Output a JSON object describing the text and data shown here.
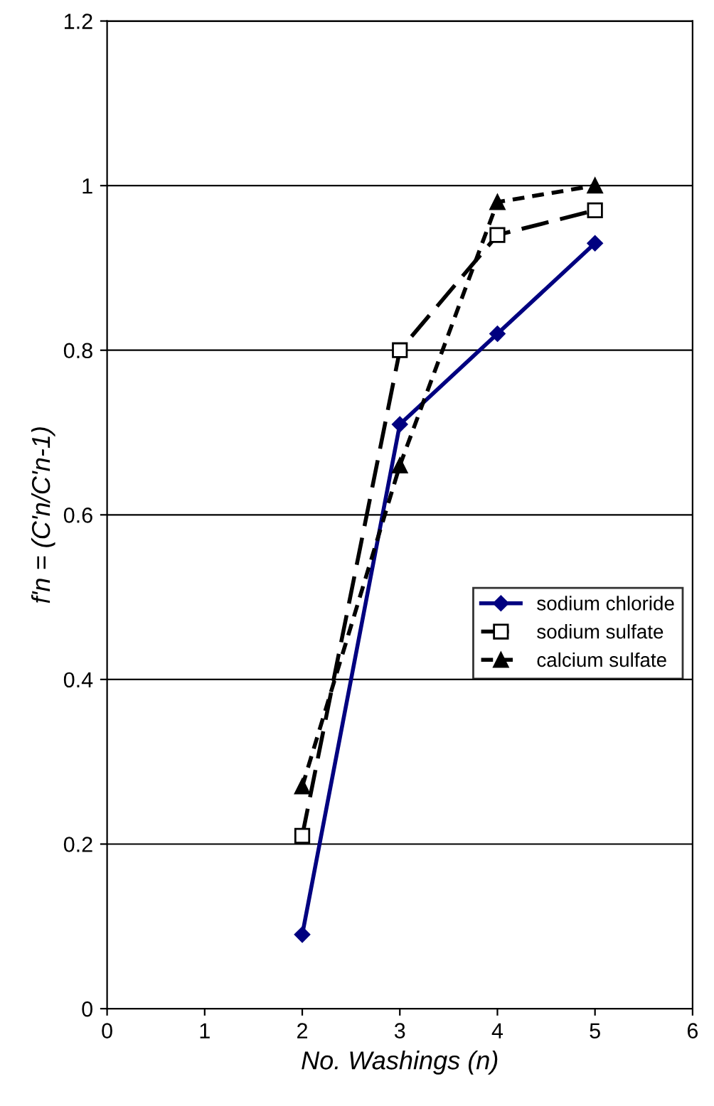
{
  "chart_data": {
    "type": "line",
    "xlabel": "No. Washings (n)",
    "ylabel": "f'n = (C'n/C'n-1)",
    "x": [
      2,
      3,
      4,
      5
    ],
    "series": [
      {
        "name": "sodium chloride",
        "color": "#000080",
        "values": [
          0.09,
          0.71,
          0.82,
          0.93
        ],
        "marker": "diamond",
        "line_style": "solid"
      },
      {
        "name": "sodium sulfate",
        "color": "#000000",
        "values": [
          0.21,
          0.8,
          0.94,
          0.97
        ],
        "marker": "square",
        "line_style": "dashed"
      },
      {
        "name": "calcium sulfate",
        "color": "#000000",
        "values": [
          0.27,
          0.66,
          0.98,
          1.0
        ],
        "marker": "triangle",
        "line_style": "dotted"
      }
    ],
    "xlim": [
      0,
      6
    ],
    "xticks": [
      0,
      1,
      2,
      3,
      4,
      5,
      6
    ],
    "ylim": [
      0,
      1.2
    ],
    "yticks": [
      0,
      0.2,
      0.4,
      0.6,
      0.8,
      1,
      1.2
    ],
    "grid": "y",
    "legend": "center right"
  }
}
